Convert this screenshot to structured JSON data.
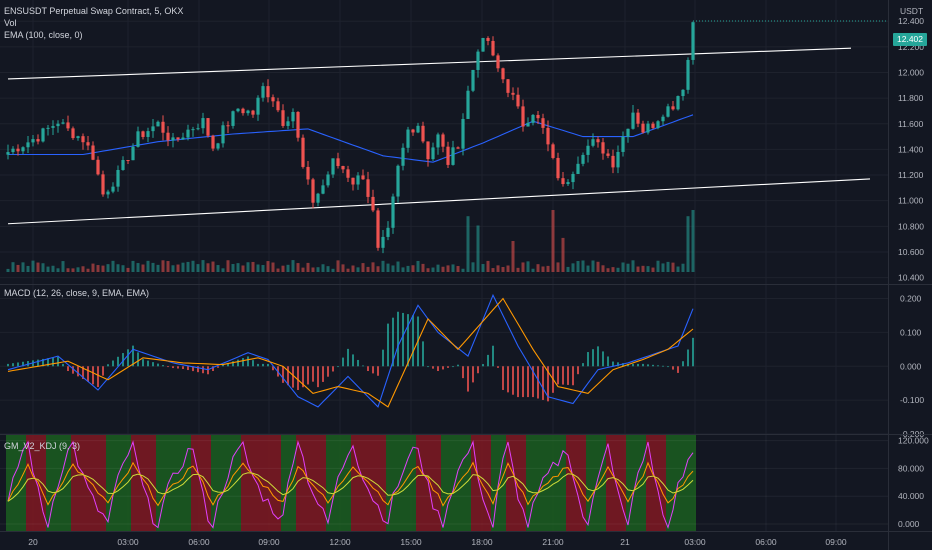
{
  "header": {
    "symbol_line": "ENSUSDT Perpetual Swap Contract, 5, OKX",
    "vol_label": "Vol",
    "ema_label": "EMA (100, close, 0)",
    "macd_label": "MACD (12, 26, close, 9, EMA, EMA)",
    "kdj_label": "GM_V2_KDJ (9, 3)",
    "currency": "USDT",
    "last_price": "12.402"
  },
  "colors": {
    "background": "#131722",
    "grid": "#1e222d",
    "up": "#26a69a",
    "down": "#ef5350",
    "ema": "#2962ff",
    "channel": "#ffffff",
    "macd_line": "#2962ff",
    "signal_line": "#ff9800",
    "kdj_bg_green": "#1b5e20",
    "kdj_bg_red": "#801922",
    "k_line": "#ff9800",
    "d_line": "#cddc39",
    "j_line": "#e040fb"
  },
  "chart_data": [
    {
      "type": "candlestick",
      "title": "ENSUSDT Perpetual Swap Contract, 5, OKX",
      "ylim": [
        10.35,
        12.55
      ],
      "y_ticks": [
        "12.400",
        "12.200",
        "12.000",
        "11.800",
        "11.600",
        "11.400",
        "11.200",
        "11.000",
        "10.800",
        "10.600",
        "10.400"
      ],
      "x_ticks": [
        "20",
        "03:00",
        "06:00",
        "09:00",
        "12:00",
        "15:00",
        "18:00",
        "21:00",
        "21",
        "03:00",
        "06:00",
        "09:00"
      ],
      "price_path": [
        [
          0,
          11.38
        ],
        [
          6,
          11.5
        ],
        [
          10,
          11.62
        ],
        [
          12,
          11.55
        ],
        [
          15,
          11.48
        ],
        [
          17,
          11.35
        ],
        [
          19,
          11.05
        ],
        [
          22,
          11.2
        ],
        [
          26,
          11.5
        ],
        [
          30,
          11.6
        ],
        [
          33,
          11.45
        ],
        [
          36,
          11.55
        ],
        [
          39,
          11.62
        ],
        [
          41,
          11.42
        ],
        [
          43,
          11.55
        ],
        [
          46,
          11.72
        ],
        [
          49,
          11.68
        ],
        [
          51,
          11.88
        ],
        [
          53,
          11.8
        ],
        [
          55,
          11.62
        ],
        [
          57,
          11.7
        ],
        [
          59,
          11.25
        ],
        [
          61,
          11.0
        ],
        [
          63,
          11.12
        ],
        [
          65,
          11.3
        ],
        [
          67,
          11.25
        ],
        [
          69,
          11.15
        ],
        [
          71,
          11.2
        ],
        [
          73,
          10.9
        ],
        [
          74,
          10.6
        ],
        [
          76,
          10.75
        ],
        [
          78,
          11.25
        ],
        [
          80,
          11.55
        ],
        [
          82,
          11.6
        ],
        [
          84,
          11.35
        ],
        [
          86,
          11.5
        ],
        [
          88,
          11.3
        ],
        [
          90,
          11.45
        ],
        [
          92,
          11.85
        ],
        [
          94,
          12.2
        ],
        [
          96,
          12.25
        ],
        [
          97,
          12.1
        ],
        [
          99,
          11.95
        ],
        [
          101,
          11.8
        ],
        [
          103,
          11.6
        ],
        [
          105,
          11.7
        ],
        [
          107,
          11.55
        ],
        [
          109,
          11.3
        ],
        [
          111,
          11.1
        ],
        [
          113,
          11.25
        ],
        [
          115,
          11.4
        ],
        [
          117,
          11.45
        ],
        [
          119,
          11.4
        ],
        [
          121,
          11.3
        ],
        [
          123,
          11.5
        ],
        [
          125,
          11.7
        ],
        [
          127,
          11.55
        ],
        [
          129,
          11.6
        ],
        [
          131,
          11.7
        ],
        [
          133,
          11.75
        ],
        [
          135,
          11.9
        ],
        [
          136,
          12.1
        ],
        [
          137,
          12.4
        ]
      ],
      "candle_count": 138,
      "ema_100": [
        [
          0,
          11.36
        ],
        [
          15,
          11.36
        ],
        [
          30,
          11.46
        ],
        [
          45,
          11.52
        ],
        [
          60,
          11.56
        ],
        [
          75,
          11.35
        ],
        [
          85,
          11.3
        ],
        [
          95,
          11.45
        ],
        [
          105,
          11.62
        ],
        [
          115,
          11.5
        ],
        [
          125,
          11.5
        ],
        [
          137,
          11.67
        ]
      ],
      "channel_upper": [
        [
          0,
          11.95
        ],
        [
          170,
          12.19
        ]
      ],
      "channel_lower": [
        [
          0,
          10.82
        ],
        [
          174,
          11.17
        ]
      ]
    },
    {
      "type": "bar",
      "title": "Vol",
      "spikes": [
        [
          92,
          0.9
        ],
        [
          94,
          0.75
        ],
        [
          101,
          0.5
        ],
        [
          109,
          1.0
        ],
        [
          111,
          0.55
        ],
        [
          136,
          0.9
        ],
        [
          137,
          1.0
        ]
      ]
    },
    {
      "type": "line",
      "title": "MACD (12, 26, close, 9, EMA, EMA)",
      "ylim": [
        -0.2,
        0.24
      ],
      "y_ticks": [
        "0.200",
        "0.100",
        "0.000",
        "-0.100",
        "-0.200"
      ],
      "macd": [
        [
          0,
          -0.01
        ],
        [
          10,
          0.03
        ],
        [
          18,
          -0.07
        ],
        [
          25,
          0.05
        ],
        [
          33,
          0.01
        ],
        [
          40,
          -0.01
        ],
        [
          48,
          0.04
        ],
        [
          52,
          0.02
        ],
        [
          58,
          -0.09
        ],
        [
          62,
          -0.12
        ],
        [
          68,
          -0.03
        ],
        [
          74,
          -0.12
        ],
        [
          78,
          0.06
        ],
        [
          82,
          0.18
        ],
        [
          86,
          0.1
        ],
        [
          92,
          0.03
        ],
        [
          97,
          0.21
        ],
        [
          102,
          0.06
        ],
        [
          108,
          -0.09
        ],
        [
          113,
          -0.11
        ],
        [
          118,
          -0.01
        ],
        [
          124,
          0.01
        ],
        [
          130,
          0.04
        ],
        [
          134,
          0.06
        ],
        [
          137,
          0.17
        ]
      ],
      "signal": [
        [
          0,
          -0.015
        ],
        [
          12,
          0.015
        ],
        [
          20,
          -0.04
        ],
        [
          27,
          0.025
        ],
        [
          35,
          0.01
        ],
        [
          43,
          0.005
        ],
        [
          50,
          0.025
        ],
        [
          55,
          0.0
        ],
        [
          61,
          -0.08
        ],
        [
          66,
          -0.06
        ],
        [
          72,
          -0.08
        ],
        [
          76,
          -0.12
        ],
        [
          84,
          0.14
        ],
        [
          90,
          0.05
        ],
        [
          99,
          0.2
        ],
        [
          105,
          0.05
        ],
        [
          110,
          -0.06
        ],
        [
          116,
          -0.08
        ],
        [
          121,
          -0.01
        ],
        [
          127,
          0.02
        ],
        [
          132,
          0.05
        ],
        [
          137,
          0.11
        ]
      ]
    },
    {
      "type": "line",
      "title": "GM_V2_KDJ (9, 3)",
      "ylim": [
        -10,
        128
      ],
      "y_ticks": [
        "120.000",
        "80.000",
        "40.000",
        "0.000"
      ],
      "bg_bands": [
        [
          0,
          4,
          "green"
        ],
        [
          4,
          8,
          "red"
        ],
        [
          8,
          13,
          "green"
        ],
        [
          13,
          20,
          "red"
        ],
        [
          20,
          25,
          "green"
        ],
        [
          25,
          30,
          "red"
        ],
        [
          30,
          37,
          "green"
        ],
        [
          37,
          41,
          "red"
        ],
        [
          41,
          47,
          "green"
        ],
        [
          47,
          55,
          "red"
        ],
        [
          55,
          58,
          "green"
        ],
        [
          58,
          64,
          "red"
        ],
        [
          64,
          69,
          "green"
        ],
        [
          69,
          76,
          "red"
        ],
        [
          76,
          82,
          "green"
        ],
        [
          82,
          87,
          "red"
        ],
        [
          87,
          93,
          "green"
        ],
        [
          93,
          97,
          "red"
        ],
        [
          97,
          100,
          "green"
        ],
        [
          100,
          104,
          "red"
        ],
        [
          104,
          112,
          "green"
        ],
        [
          112,
          116,
          "red"
        ],
        [
          116,
          120,
          "green"
        ],
        [
          120,
          124,
          "red"
        ],
        [
          124,
          128,
          "green"
        ],
        [
          128,
          132,
          "red"
        ],
        [
          132,
          138,
          "green"
        ]
      ]
    }
  ]
}
